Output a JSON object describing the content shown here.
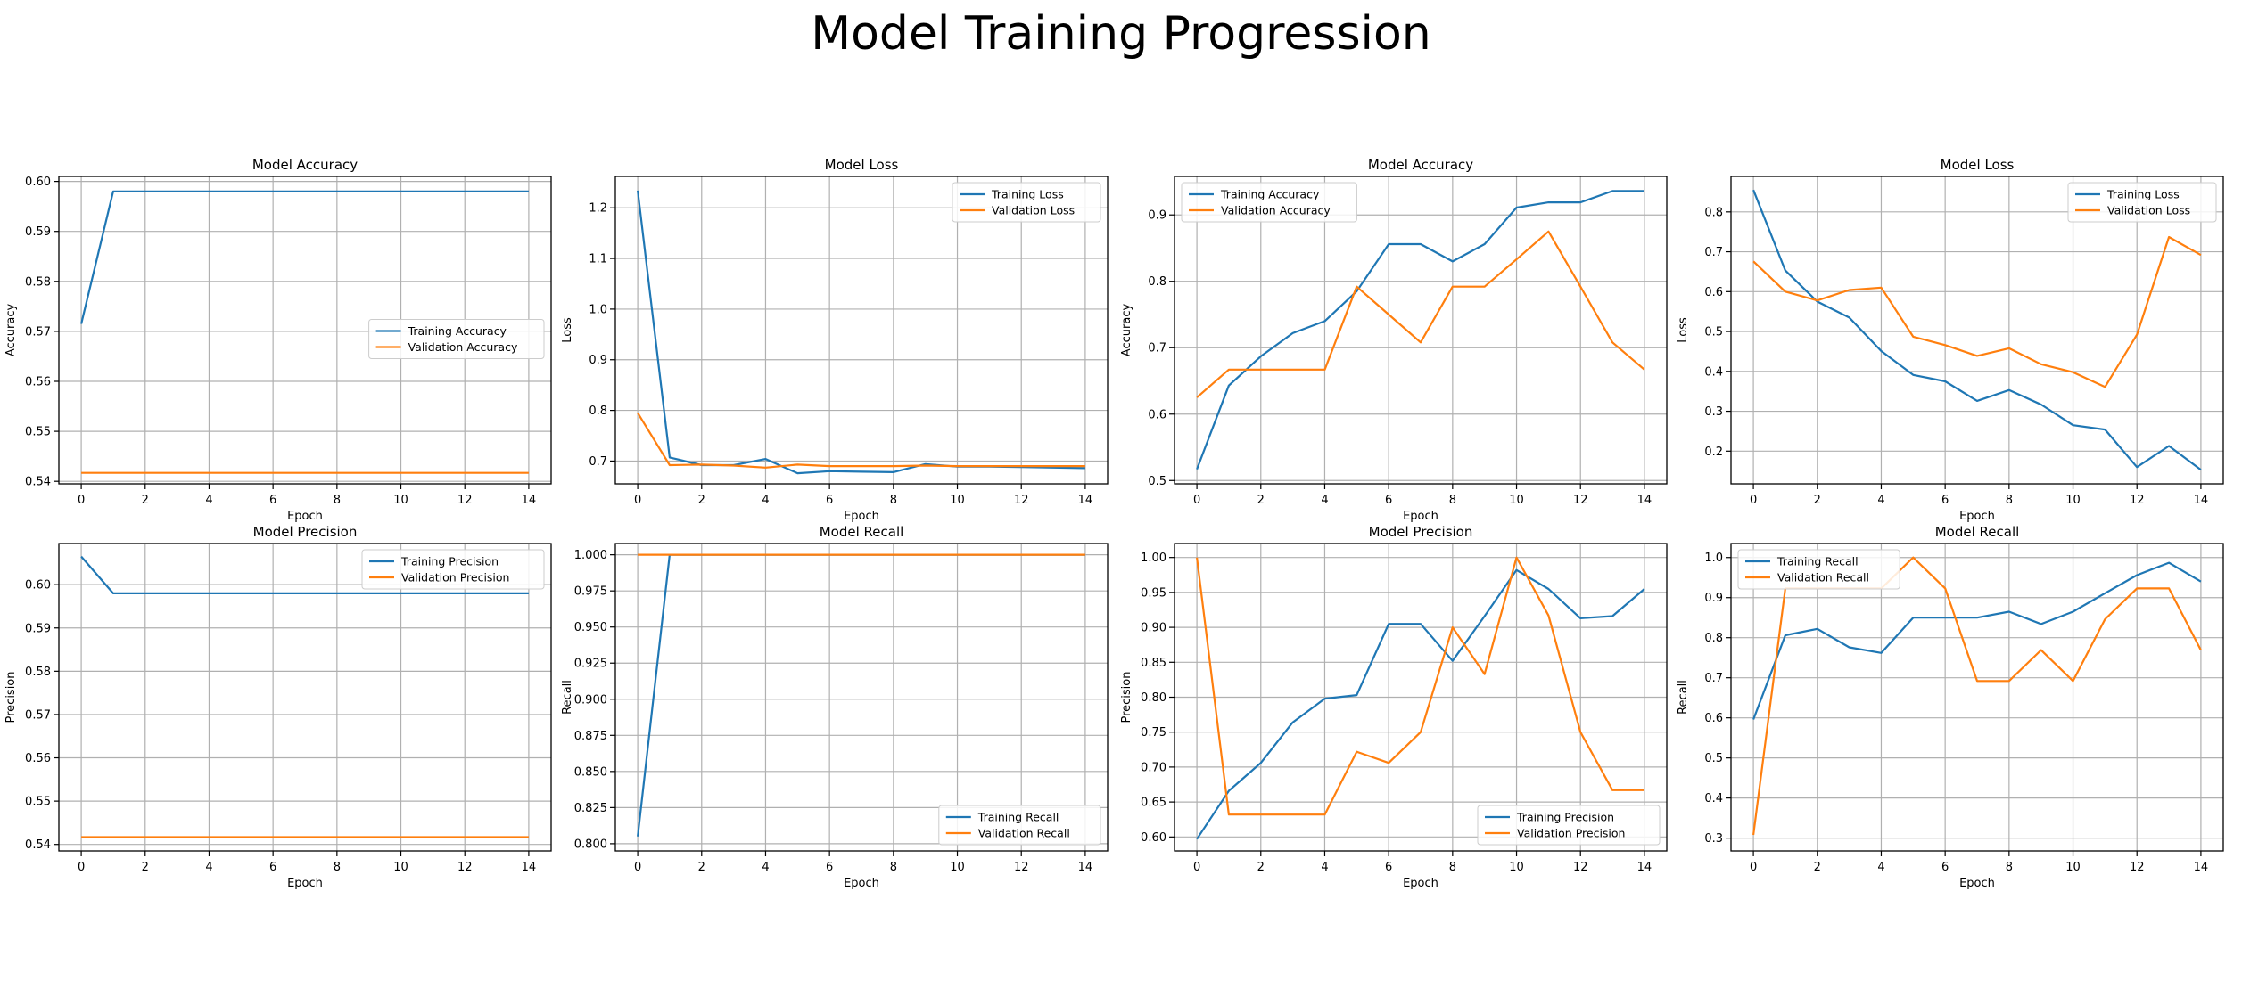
{
  "figure": {
    "title": "Model Training Progression"
  },
  "colors": {
    "training": "#1f77b4",
    "validation": "#ff7f0e",
    "grid": "#b0b0b0"
  },
  "chart_data": [
    {
      "type": "line",
      "title": "Model Accuracy",
      "xlabel": "Epoch",
      "ylabel": "Accuracy",
      "x": [
        0,
        1,
        2,
        3,
        4,
        5,
        6,
        7,
        8,
        9,
        10,
        11,
        12,
        13,
        14
      ],
      "xlim": [
        -0.7,
        14.7
      ],
      "ylim": [
        0.5395,
        0.601
      ],
      "xticks": [
        0,
        2,
        4,
        6,
        8,
        10,
        12,
        14
      ],
      "yticks": [
        0.54,
        0.55,
        0.56,
        0.57,
        0.58,
        0.59,
        0.6
      ],
      "ytick_labels": [
        "0.54",
        "0.55",
        "0.56",
        "0.57",
        "0.58",
        "0.59",
        "0.60"
      ],
      "grid": true,
      "legend_position": "center-right",
      "series": [
        {
          "name": "Training Accuracy",
          "values": [
            0.5715,
            0.598,
            0.598,
            0.598,
            0.598,
            0.598,
            0.598,
            0.598,
            0.598,
            0.598,
            0.598,
            0.598,
            0.598,
            0.598,
            0.598
          ]
        },
        {
          "name": "Validation Accuracy",
          "values": [
            0.5417,
            0.5417,
            0.5417,
            0.5417,
            0.5417,
            0.5417,
            0.5417,
            0.5417,
            0.5417,
            0.5417,
            0.5417,
            0.5417,
            0.5417,
            0.5417,
            0.5417
          ]
        }
      ]
    },
    {
      "type": "line",
      "title": "Model Loss",
      "xlabel": "Epoch",
      "ylabel": "Loss",
      "x": [
        0,
        1,
        2,
        3,
        4,
        5,
        6,
        7,
        8,
        9,
        10,
        11,
        12,
        13,
        14
      ],
      "xlim": [
        -0.7,
        14.7
      ],
      "ylim": [
        0.655,
        1.262
      ],
      "xticks": [
        0,
        2,
        4,
        6,
        8,
        10,
        12,
        14
      ],
      "yticks": [
        0.7,
        0.8,
        0.9,
        1.0,
        1.1,
        1.2
      ],
      "ytick_labels": [
        "0.7",
        "0.8",
        "0.9",
        "1.0",
        "1.1",
        "1.2"
      ],
      "grid": true,
      "legend_position": "top-right",
      "series": [
        {
          "name": "Training Loss",
          "values": [
            1.234,
            0.707,
            0.692,
            0.692,
            0.704,
            0.676,
            0.68,
            0.679,
            0.678,
            0.694,
            0.689,
            0.689,
            0.688,
            0.687,
            0.686
          ]
        },
        {
          "name": "Validation Loss",
          "values": [
            0.795,
            0.692,
            0.693,
            0.691,
            0.687,
            0.693,
            0.69,
            0.69,
            0.69,
            0.691,
            0.69,
            0.69,
            0.69,
            0.69,
            0.69
          ]
        }
      ]
    },
    {
      "type": "line",
      "title": "Model Accuracy",
      "xlabel": "Epoch",
      "ylabel": "Accuracy",
      "x": [
        0,
        1,
        2,
        3,
        4,
        5,
        6,
        7,
        8,
        9,
        10,
        11,
        12,
        13,
        14
      ],
      "xlim": [
        -0.7,
        14.7
      ],
      "ylim": [
        0.495,
        0.958
      ],
      "xticks": [
        0,
        2,
        4,
        6,
        8,
        10,
        12,
        14
      ],
      "yticks": [
        0.5,
        0.6,
        0.7,
        0.8,
        0.9
      ],
      "ytick_labels": [
        "0.5",
        "0.6",
        "0.7",
        "0.8",
        "0.9"
      ],
      "grid": true,
      "legend_position": "top-left",
      "series": [
        {
          "name": "Training Accuracy",
          "values": [
            0.517,
            0.643,
            0.687,
            0.722,
            0.74,
            0.785,
            0.856,
            0.856,
            0.83,
            0.856,
            0.911,
            0.919,
            0.919,
            0.936,
            0.936
          ]
        },
        {
          "name": "Validation Accuracy",
          "values": [
            0.625,
            0.667,
            0.667,
            0.667,
            0.667,
            0.792,
            0.75,
            0.708,
            0.792,
            0.792,
            0.833,
            0.875,
            0.792,
            0.708,
            0.667
          ]
        }
      ]
    },
    {
      "type": "line",
      "title": "Model Loss",
      "xlabel": "Epoch",
      "ylabel": "Loss",
      "x": [
        0,
        1,
        2,
        3,
        4,
        5,
        6,
        7,
        8,
        9,
        10,
        11,
        12,
        13,
        14
      ],
      "xlim": [
        -0.7,
        14.7
      ],
      "ylim": [
        0.118,
        0.889
      ],
      "xticks": [
        0,
        2,
        4,
        6,
        8,
        10,
        12,
        14
      ],
      "yticks": [
        0.2,
        0.3,
        0.4,
        0.5,
        0.6,
        0.7,
        0.8
      ],
      "ytick_labels": [
        "0.2",
        "0.3",
        "0.4",
        "0.5",
        "0.6",
        "0.7",
        "0.8"
      ],
      "grid": true,
      "legend_position": "top-right",
      "series": [
        {
          "name": "Training Loss",
          "values": [
            0.855,
            0.653,
            0.575,
            0.535,
            0.451,
            0.391,
            0.375,
            0.326,
            0.353,
            0.317,
            0.265,
            0.254,
            0.16,
            0.213,
            0.153
          ]
        },
        {
          "name": "Validation Loss",
          "values": [
            0.676,
            0.6,
            0.578,
            0.604,
            0.61,
            0.487,
            0.466,
            0.439,
            0.458,
            0.418,
            0.398,
            0.361,
            0.492,
            0.737,
            0.692
          ]
        }
      ]
    },
    {
      "type": "line",
      "title": "Model Precision",
      "xlabel": "Epoch",
      "ylabel": "Precision",
      "x": [
        0,
        1,
        2,
        3,
        4,
        5,
        6,
        7,
        8,
        9,
        10,
        11,
        12,
        13,
        14
      ],
      "xlim": [
        -0.7,
        14.7
      ],
      "ylim": [
        0.5385,
        0.6095
      ],
      "xticks": [
        0,
        2,
        4,
        6,
        8,
        10,
        12,
        14
      ],
      "yticks": [
        0.54,
        0.55,
        0.56,
        0.57,
        0.58,
        0.59,
        0.6
      ],
      "ytick_labels": [
        "0.54",
        "0.55",
        "0.56",
        "0.57",
        "0.58",
        "0.59",
        "0.60"
      ],
      "grid": true,
      "legend_position": "top-right",
      "series": [
        {
          "name": "Training Precision",
          "values": [
            0.6065,
            0.598,
            0.598,
            0.598,
            0.598,
            0.598,
            0.598,
            0.598,
            0.598,
            0.598,
            0.598,
            0.598,
            0.598,
            0.598,
            0.598
          ]
        },
        {
          "name": "Validation Precision",
          "values": [
            0.5417,
            0.5417,
            0.5417,
            0.5417,
            0.5417,
            0.5417,
            0.5417,
            0.5417,
            0.5417,
            0.5417,
            0.5417,
            0.5417,
            0.5417,
            0.5417,
            0.5417
          ]
        }
      ]
    },
    {
      "type": "line",
      "title": "Model Recall",
      "xlabel": "Epoch",
      "ylabel": "Recall",
      "x": [
        0,
        1,
        2,
        3,
        4,
        5,
        6,
        7,
        8,
        9,
        10,
        11,
        12,
        13,
        14
      ],
      "xlim": [
        -0.7,
        14.7
      ],
      "ylim": [
        0.795,
        1.0078
      ],
      "xticks": [
        0,
        2,
        4,
        6,
        8,
        10,
        12,
        14
      ],
      "yticks": [
        0.8,
        0.825,
        0.85,
        0.875,
        0.9,
        0.925,
        0.95,
        0.975,
        1.0
      ],
      "ytick_labels": [
        "0.800",
        "0.825",
        "0.850",
        "0.875",
        "0.900",
        "0.925",
        "0.950",
        "0.975",
        "1.000"
      ],
      "grid": true,
      "legend_position": "bottom-right",
      "series": [
        {
          "name": "Training Recall",
          "values": [
            0.805,
            1.0,
            1.0,
            1.0,
            1.0,
            1.0,
            1.0,
            1.0,
            1.0,
            1.0,
            1.0,
            1.0,
            1.0,
            1.0,
            1.0
          ]
        },
        {
          "name": "Validation Recall",
          "values": [
            1.0,
            1.0,
            1.0,
            1.0,
            1.0,
            1.0,
            1.0,
            1.0,
            1.0,
            1.0,
            1.0,
            1.0,
            1.0,
            1.0,
            1.0
          ]
        }
      ]
    },
    {
      "type": "line",
      "title": "Model Precision",
      "xlabel": "Epoch",
      "ylabel": "Precision",
      "x": [
        0,
        1,
        2,
        3,
        4,
        5,
        6,
        7,
        8,
        9,
        10,
        11,
        12,
        13,
        14
      ],
      "xlim": [
        -0.7,
        14.7
      ],
      "ylim": [
        0.58,
        1.02
      ],
      "xticks": [
        0,
        2,
        4,
        6,
        8,
        10,
        12,
        14
      ],
      "yticks": [
        0.6,
        0.65,
        0.7,
        0.75,
        0.8,
        0.85,
        0.9,
        0.95,
        1.0
      ],
      "ytick_labels": [
        "0.60",
        "0.65",
        "0.70",
        "0.75",
        "0.80",
        "0.85",
        "0.90",
        "0.95",
        "1.00"
      ],
      "grid": true,
      "legend_position": "bottom-right",
      "series": [
        {
          "name": "Training Precision",
          "values": [
            0.597,
            0.666,
            0.706,
            0.764,
            0.798,
            0.803,
            0.905,
            0.905,
            0.852,
            0.916,
            0.982,
            0.955,
            0.913,
            0.916,
            0.955
          ]
        },
        {
          "name": "Validation Precision",
          "values": [
            1.0,
            0.632,
            0.632,
            0.632,
            0.632,
            0.722,
            0.706,
            0.75,
            0.9,
            0.833,
            1.0,
            0.917,
            0.75,
            0.667,
            0.667
          ]
        }
      ]
    },
    {
      "type": "line",
      "title": "Model Recall",
      "xlabel": "Epoch",
      "ylabel": "Recall",
      "x": [
        0,
        1,
        2,
        3,
        4,
        5,
        6,
        7,
        8,
        9,
        10,
        11,
        12,
        13,
        14
      ],
      "xlim": [
        -0.7,
        14.7
      ],
      "ylim": [
        0.268,
        1.035
      ],
      "xticks": [
        0,
        2,
        4,
        6,
        8,
        10,
        12,
        14
      ],
      "yticks": [
        0.3,
        0.4,
        0.5,
        0.6,
        0.7,
        0.8,
        0.9,
        1.0
      ],
      "ytick_labels": [
        "0.3",
        "0.4",
        "0.5",
        "0.6",
        "0.7",
        "0.8",
        "0.9",
        "1.0"
      ],
      "grid": true,
      "legend_position": "top-left",
      "series": [
        {
          "name": "Training Recall",
          "values": [
            0.596,
            0.806,
            0.822,
            0.776,
            0.762,
            0.85,
            0.85,
            0.85,
            0.865,
            0.834,
            0.865,
            0.911,
            0.956,
            0.987,
            0.94
          ]
        },
        {
          "name": "Validation Recall",
          "values": [
            0.308,
            0.923,
            0.923,
            0.923,
            0.923,
            1.0,
            0.923,
            0.692,
            0.692,
            0.769,
            0.692,
            0.846,
            0.923,
            0.923,
            0.769
          ]
        }
      ]
    }
  ]
}
